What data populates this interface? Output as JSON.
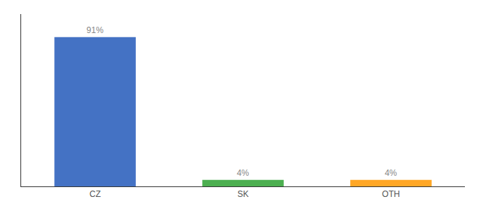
{
  "chart_data": {
    "type": "bar",
    "categories": [
      "CZ",
      "SK",
      "OTH"
    ],
    "values": [
      91,
      4,
      4
    ],
    "value_labels": [
      "91%",
      "4%",
      "4%"
    ],
    "colors": [
      "#4472c4",
      "#4caf50",
      "#ffa726"
    ],
    "ylim": [
      0,
      105
    ],
    "grid": false,
    "tick_labels": "x",
    "data_labels": true
  }
}
